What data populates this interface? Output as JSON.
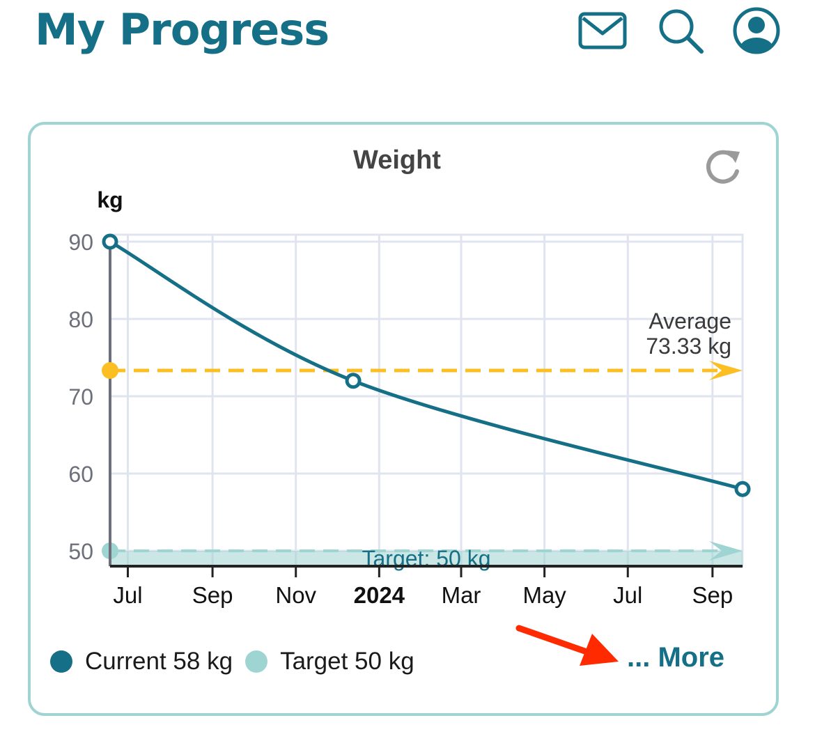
{
  "header": {
    "title": "My Progress",
    "icons": [
      "mail-icon",
      "search-icon",
      "profile-icon"
    ]
  },
  "card": {
    "title": "Weight",
    "refresh_icon": "refresh-icon",
    "unit_label": "kg",
    "more_label": "... More",
    "annotation_arrow_icon": "red-arrow-icon"
  },
  "colors": {
    "brand": "#156f86",
    "current": "#156f86",
    "target": "#9ed4d2",
    "average": "#fbbf24",
    "card_border": "#9fd4d2",
    "annotation_arrow": "#ff2a00"
  },
  "chart_data": {
    "type": "line",
    "title": "Weight",
    "ylabel": "kg",
    "ylim": [
      50,
      90
    ],
    "yticks": [
      90,
      80,
      70,
      60,
      50
    ],
    "xlim": [
      "2023-06-18",
      "2024-09-23"
    ],
    "xticks": [
      {
        "label": "Jul",
        "date": "2023-07-01",
        "bold": false
      },
      {
        "label": "Sep",
        "date": "2023-09-01",
        "bold": false
      },
      {
        "label": "Nov",
        "date": "2023-11-01",
        "bold": false
      },
      {
        "label": "2024",
        "date": "2024-01-01",
        "bold": true
      },
      {
        "label": "Mar",
        "date": "2024-03-01",
        "bold": false
      },
      {
        "label": "May",
        "date": "2024-05-01",
        "bold": false
      },
      {
        "label": "Jul",
        "date": "2024-07-01",
        "bold": false
      },
      {
        "label": "Sep",
        "date": "2024-09-01",
        "bold": false
      }
    ],
    "grid": true,
    "series": [
      {
        "name": "Current",
        "points": [
          {
            "x": "2023-06-18",
            "y": 90
          },
          {
            "x": "2023-12-13",
            "y": 72
          },
          {
            "x": "2024-09-23",
            "y": 58
          }
        ]
      }
    ],
    "average": {
      "value": 73.33,
      "label_line1": "Average",
      "label_line2": "73.33 kg"
    },
    "target": {
      "value": 50,
      "label": "Target: 50 kg"
    },
    "legend": [
      {
        "label": "Current 58 kg",
        "color_key": "current"
      },
      {
        "label": "Target 50 kg",
        "color_key": "target"
      }
    ]
  }
}
